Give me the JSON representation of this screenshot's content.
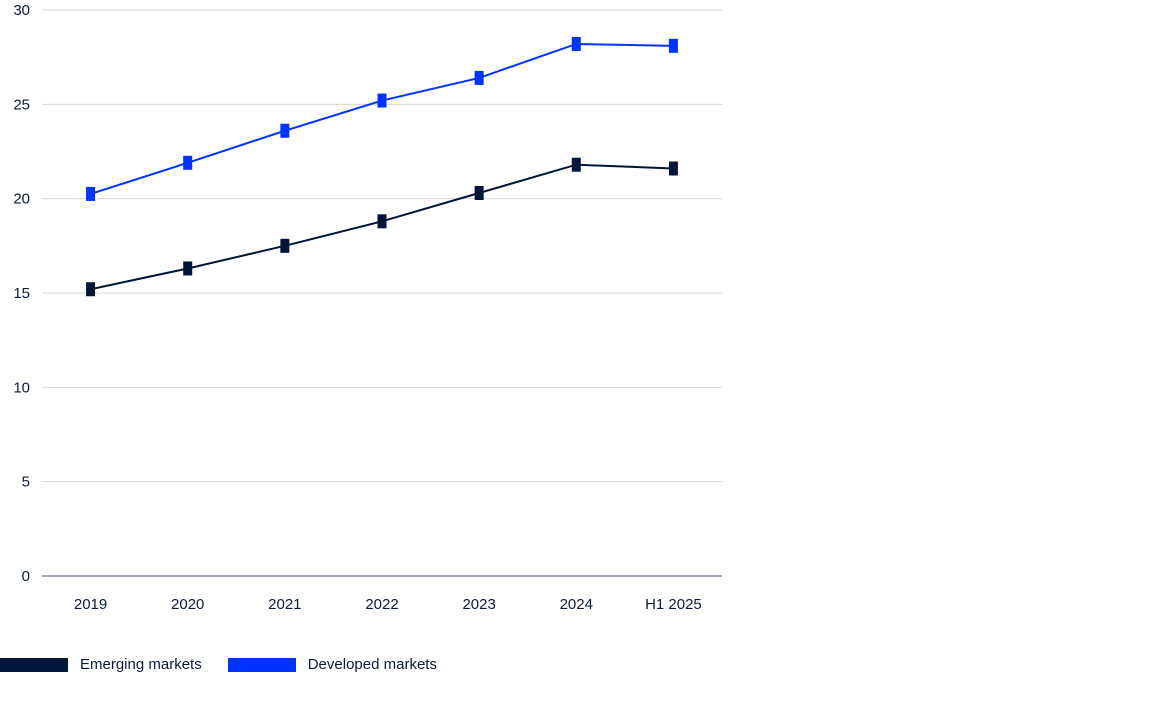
{
  "chart_data": {
    "type": "line",
    "title": "",
    "xlabel": "",
    "ylabel": "",
    "categories": [
      "2019",
      "2020",
      "2021",
      "2022",
      "2023",
      "2024",
      "H1 2025"
    ],
    "yticks": [
      "0",
      "5",
      "10",
      "15",
      "20",
      "25",
      "30"
    ],
    "ylim": [
      0,
      30
    ],
    "grid": true,
    "legend_position": "bottom-left",
    "series": [
      {
        "name": "Emerging markets",
        "color": "#001538",
        "values": [
          15.2,
          16.3,
          17.5,
          18.8,
          20.3,
          21.8,
          21.6
        ]
      },
      {
        "name": "Developed markets",
        "color": "#0033ff",
        "values": [
          20.25,
          21.9,
          23.6,
          25.2,
          26.4,
          28.2,
          28.1
        ]
      }
    ]
  }
}
